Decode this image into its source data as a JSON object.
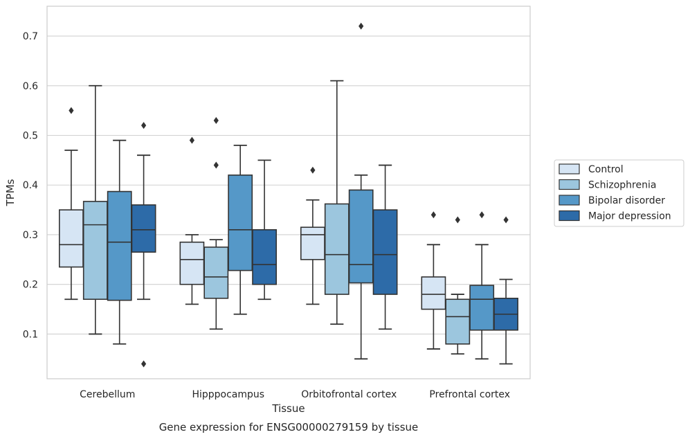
{
  "caption": "Gene expression for ENSG00000279159 by tissue",
  "chart_data": {
    "type": "box",
    "title": "",
    "xlabel": "Tissue",
    "ylabel": "TPMs",
    "ylim": [
      0.01,
      0.76
    ],
    "yticks": [
      0.1,
      0.2,
      0.3,
      0.4,
      0.5,
      0.6,
      0.7
    ],
    "grid": "horizontal",
    "legend_position": "right",
    "categories": [
      "Cerebellum",
      "Hipppocampus",
      "Orbitofrontal cortex",
      "Prefrontal cortex"
    ],
    "series": [
      {
        "name": "Control",
        "color": "#d6e5f4",
        "boxes": [
          {
            "whislo": 0.17,
            "q1": 0.235,
            "med": 0.28,
            "q3": 0.35,
            "whishi": 0.47,
            "fliers": [
              0.55
            ]
          },
          {
            "whislo": 0.16,
            "q1": 0.2,
            "med": 0.25,
            "q3": 0.285,
            "whishi": 0.3,
            "fliers": [
              0.49
            ]
          },
          {
            "whislo": 0.16,
            "q1": 0.25,
            "med": 0.3,
            "q3": 0.315,
            "whishi": 0.37,
            "fliers": [
              0.43
            ]
          },
          {
            "whislo": 0.07,
            "q1": 0.15,
            "med": 0.18,
            "q3": 0.215,
            "whishi": 0.28,
            "fliers": [
              0.34
            ]
          }
        ]
      },
      {
        "name": "Schizophrenia",
        "color": "#9cc6de",
        "boxes": [
          {
            "whislo": 0.1,
            "q1": 0.17,
            "med": 0.32,
            "q3": 0.367,
            "whishi": 0.6,
            "fliers": []
          },
          {
            "whislo": 0.11,
            "q1": 0.172,
            "med": 0.215,
            "q3": 0.275,
            "whishi": 0.29,
            "fliers": [
              0.53,
              0.44
            ]
          },
          {
            "whislo": 0.12,
            "q1": 0.18,
            "med": 0.26,
            "q3": 0.362,
            "whishi": 0.61,
            "fliers": []
          },
          {
            "whislo": 0.06,
            "q1": 0.08,
            "med": 0.135,
            "q3": 0.17,
            "whishi": 0.18,
            "fliers": [
              0.33
            ]
          }
        ]
      },
      {
        "name": "Bipolar disorder",
        "color": "#5598c8",
        "boxes": [
          {
            "whislo": 0.08,
            "q1": 0.168,
            "med": 0.285,
            "q3": 0.387,
            "whishi": 0.49,
            "fliers": []
          },
          {
            "whislo": 0.14,
            "q1": 0.228,
            "med": 0.31,
            "q3": 0.42,
            "whishi": 0.48,
            "fliers": []
          },
          {
            "whislo": 0.05,
            "q1": 0.203,
            "med": 0.24,
            "q3": 0.39,
            "whishi": 0.42,
            "fliers": [
              0.72
            ]
          },
          {
            "whislo": 0.05,
            "q1": 0.108,
            "med": 0.17,
            "q3": 0.198,
            "whishi": 0.28,
            "fliers": [
              0.34
            ]
          }
        ]
      },
      {
        "name": "Major depression",
        "color": "#2d6ba8",
        "boxes": [
          {
            "whislo": 0.17,
            "q1": 0.265,
            "med": 0.31,
            "q3": 0.36,
            "whishi": 0.46,
            "fliers": [
              0.52,
              0.04
            ]
          },
          {
            "whislo": 0.17,
            "q1": 0.2,
            "med": 0.24,
            "q3": 0.31,
            "whishi": 0.45,
            "fliers": []
          },
          {
            "whislo": 0.11,
            "q1": 0.18,
            "med": 0.26,
            "q3": 0.35,
            "whishi": 0.44,
            "fliers": []
          },
          {
            "whislo": 0.04,
            "q1": 0.108,
            "med": 0.14,
            "q3": 0.172,
            "whishi": 0.21,
            "fliers": [
              0.33
            ]
          }
        ]
      }
    ]
  }
}
